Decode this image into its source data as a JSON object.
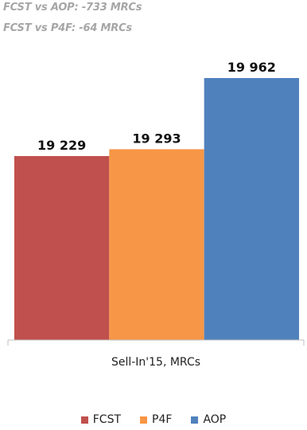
{
  "annotations": {
    "fcst_vs_aop": "FCST vs AOP:  -733 MRCs",
    "fcst_vs_p4f": "FCST vs P4F: -64 MRCs"
  },
  "chart_data": {
    "type": "bar",
    "categories": [
      "Sell-In'15, MRCs"
    ],
    "xlabel": "Sell-In'15, MRCs",
    "ylabel": "",
    "series": [
      {
        "name": "FCST",
        "values": [
          19229
        ],
        "label": "19 229",
        "color": "#c0504d"
      },
      {
        "name": "P4F",
        "values": [
          19293
        ],
        "label": "19 293",
        "color": "#f79646"
      },
      {
        "name": "AOP",
        "values": [
          19962
        ],
        "label": "19 962",
        "color": "#4f81bd"
      }
    ],
    "legend": "bottom",
    "grid": false
  }
}
